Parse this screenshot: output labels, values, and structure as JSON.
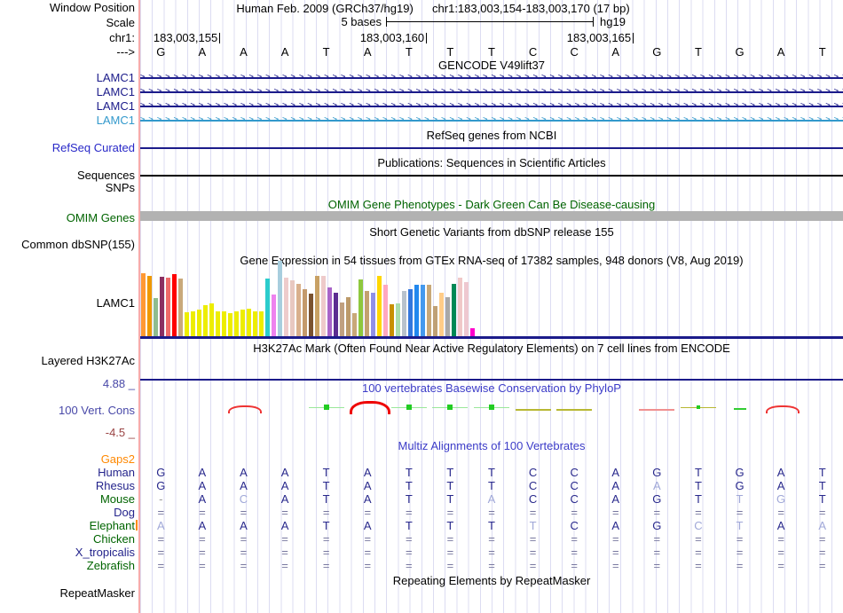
{
  "header": {
    "assembly_line": "Human Feb. 2009 (GRCh37/hg19)",
    "position_line": "chr1:183,003,154-183,003,170 (17 bp)"
  },
  "gutter": {
    "window_position": "Window Position",
    "scale": "Scale",
    "chrom": "chr1:",
    "strand_arrow": "--->"
  },
  "scale": {
    "width_label": "5 bases",
    "assembly": "hg19"
  },
  "ruler": {
    "positions": [
      {
        "label": "183,003,155",
        "base_index": 1
      },
      {
        "label": "183,003,160",
        "base_index": 6
      },
      {
        "label": "183,003,165",
        "base_index": 11
      }
    ]
  },
  "sequence": [
    "G",
    "A",
    "A",
    "A",
    "T",
    "A",
    "T",
    "T",
    "T",
    "C",
    "C",
    "A",
    "G",
    "T",
    "G",
    "A",
    "T"
  ],
  "gencode": {
    "title": "GENCODE V49lift37",
    "genes": [
      {
        "label": "LAMC1",
        "color": "#1b1b8a"
      },
      {
        "label": "LAMC1",
        "color": "#1b1b8a"
      },
      {
        "label": "LAMC1",
        "color": "#1b1b8a"
      },
      {
        "label": "LAMC1",
        "color": "#3399cc"
      }
    ]
  },
  "refseq": {
    "title": "RefSeq genes from NCBI",
    "label": "RefSeq Curated"
  },
  "publications": {
    "title": "Publications: Sequences in Scientific Articles",
    "label": "Sequences"
  },
  "snps": {
    "label": "SNPs"
  },
  "omim": {
    "title": "OMIM Gene Phenotypes - Dark Green Can Be Disease-causing",
    "label": "OMIM Genes"
  },
  "dbsnp": {
    "title": "Short Genetic Variants from dbSNP release 155",
    "label": "Common dbSNP(155)"
  },
  "gtex": {
    "title": "Gene Expression in 54 tissues from GTEx RNA-seq of 17382 samples, 948 donors (V8, Aug 2019)",
    "label": "LAMC1",
    "bars": [
      {
        "h": 0.84,
        "c": "#ff9933"
      },
      {
        "h": 0.8,
        "c": "#ee9900"
      },
      {
        "h": 0.51,
        "c": "#8fbc8f"
      },
      {
        "h": 0.79,
        "c": "#8b2f62"
      },
      {
        "h": 0.78,
        "c": "#ee6a6a"
      },
      {
        "h": 0.82,
        "c": "#ff0000"
      },
      {
        "h": 0.76,
        "c": "#c9a97b"
      },
      {
        "h": 0.32,
        "c": "#eded00"
      },
      {
        "h": 0.33,
        "c": "#eded00"
      },
      {
        "h": 0.35,
        "c": "#eded00"
      },
      {
        "h": 0.41,
        "c": "#eded00"
      },
      {
        "h": 0.44,
        "c": "#eded00"
      },
      {
        "h": 0.33,
        "c": "#eded00"
      },
      {
        "h": 0.33,
        "c": "#eded00"
      },
      {
        "h": 0.31,
        "c": "#eded00"
      },
      {
        "h": 0.33,
        "c": "#eded00"
      },
      {
        "h": 0.35,
        "c": "#eded00"
      },
      {
        "h": 0.36,
        "c": "#eded00"
      },
      {
        "h": 0.33,
        "c": "#eded00"
      },
      {
        "h": 0.33,
        "c": "#eded00"
      },
      {
        "h": 0.76,
        "c": "#2bcccc"
      },
      {
        "h": 0.55,
        "c": "#ee82ee"
      },
      {
        "h": 1.0,
        "c": "#a8cede"
      },
      {
        "h": 0.78,
        "c": "#eecccc"
      },
      {
        "h": 0.74,
        "c": "#e8c8c0"
      },
      {
        "h": 0.7,
        "c": "#d9b08c"
      },
      {
        "h": 0.62,
        "c": "#c49a6c"
      },
      {
        "h": 0.56,
        "c": "#7a5230"
      },
      {
        "h": 0.8,
        "c": "#c8a165"
      },
      {
        "h": 0.8,
        "c": "#eecaca"
      },
      {
        "h": 0.65,
        "c": "#a864c8"
      },
      {
        "h": 0.58,
        "c": "#5c2d91"
      },
      {
        "h": 0.45,
        "c": "#c0a080"
      },
      {
        "h": 0.52,
        "c": "#bc9a6a"
      },
      {
        "h": 0.3,
        "c": "#c8a878"
      },
      {
        "h": 0.75,
        "c": "#8ec73e"
      },
      {
        "h": 0.6,
        "c": "#c3a170"
      },
      {
        "h": 0.58,
        "c": "#9090e8"
      },
      {
        "h": 0.8,
        "c": "#ffd700"
      },
      {
        "h": 0.68,
        "c": "#ffa8c0"
      },
      {
        "h": 0.42,
        "c": "#c89000"
      },
      {
        "h": 0.43,
        "c": "#aaddaa"
      },
      {
        "h": 0.6,
        "c": "#b8c2cc"
      },
      {
        "h": 0.62,
        "c": "#3377dd"
      },
      {
        "h": 0.68,
        "c": "#2288ee"
      },
      {
        "h": 0.68,
        "c": "#4499ee"
      },
      {
        "h": 0.68,
        "c": "#c8a878"
      },
      {
        "h": 0.4,
        "c": "#bfa075"
      },
      {
        "h": 0.58,
        "c": "#ffcc88"
      },
      {
        "h": 0.52,
        "c": "#a8a8a8"
      },
      {
        "h": 0.7,
        "c": "#008855"
      },
      {
        "h": 0.78,
        "c": "#f0c8c8"
      },
      {
        "h": 0.72,
        "c": "#eec8d0"
      },
      {
        "h": 0.1,
        "c": "#ff00cc"
      }
    ]
  },
  "h3k27ac": {
    "title": "H3K27Ac Mark (Often Found Near Active Regulatory Elements) on 7 cell lines from ENCODE",
    "label": "Layered H3K27Ac"
  },
  "phylop": {
    "title": "100 vertebrates Basewise Conservation by PhyloP",
    "label": "100 Vert. Cons",
    "max_label": "4.88 _",
    "min_label": "-4.5 _",
    "marks": [
      "none",
      "none",
      "arc",
      "none",
      "sq",
      "arcbig",
      "sq",
      "sq",
      "sq",
      "olive",
      "olive",
      "none",
      "reddash",
      "olivegreen",
      "greendash",
      "arc",
      "none"
    ]
  },
  "multiz": {
    "title": "Multiz Alignments of 100 Vertebrates",
    "rows": [
      {
        "name": "Gaps2",
        "color": "#ff8800",
        "bases": "",
        "styles": ""
      },
      {
        "name": "Human",
        "color": "#24248c",
        "bases": "GAAATATTTCCAGTGAT",
        "styles": "nnnnnnnnnnnnnnnnn"
      },
      {
        "name": "Rhesus",
        "color": "#24248c",
        "bases": "GAAATATTTCCAATGAT",
        "styles": "nnnnnnnnnnnnlnnnn"
      },
      {
        "name": "Mouse",
        "color": "#006400",
        "bases": "-ACATATTACCAGTTGT",
        "styles": "dnlnnnnnlnnnnnlln"
      },
      {
        "name": "Dog",
        "color": "#24248c",
        "bases": "=================",
        "styles": "ggggggggggggggggg"
      },
      {
        "name": "Elephant",
        "color": "#006400",
        "bases": "AAAATATTTTCAGCTAA",
        "styles": "lnnnnnnnnlnnnllnl",
        "insert_mark": true
      },
      {
        "name": "Chicken",
        "color": "#006400",
        "bases": "=================",
        "styles": "ggggggggggggggggg"
      },
      {
        "name": "X_tropicalis",
        "color": "#24248c",
        "bases": "=================",
        "styles": "ggggggggggggggggg"
      },
      {
        "name": "Zebrafish",
        "color": "#006400",
        "bases": "=================",
        "styles": "ggggggggggggggggg"
      }
    ]
  },
  "repeatmasker": {
    "title": "Repeating Elements by RepeatMasker",
    "label": "RepeatMasker"
  },
  "colors": {
    "navy": "#1b1b8a",
    "teal_gene": "#3399cc",
    "blue_title": "#3c3cc8",
    "omim_bar_gray": "#b2b2b2",
    "gridline": "#dcdcf2",
    "left_guide_pink": "#f7abab"
  }
}
